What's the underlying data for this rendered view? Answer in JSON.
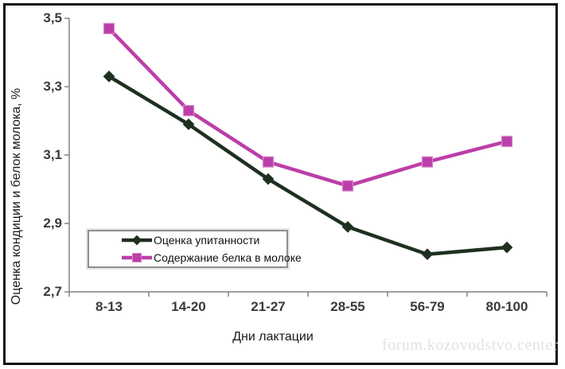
{
  "chart_data": {
    "type": "line",
    "title": "",
    "categories": [
      "8-13",
      "14-20",
      "21-27",
      "28-55",
      "56-79",
      "80-100"
    ],
    "series": [
      {
        "name": "Оценка упитанности",
        "values": [
          3.33,
          3.19,
          3.03,
          2.89,
          2.81,
          2.83
        ],
        "color": "#1e3020",
        "marker": "diamond"
      },
      {
        "name": "Содержание белка в молоке",
        "values": [
          3.47,
          3.23,
          3.08,
          3.01,
          3.08,
          3.14
        ],
        "color": "#bc3ea8",
        "marker": "square",
        "marker_edge": "#d887cb"
      }
    ],
    "xlabel": "Дни лактации",
    "ylabel": "Оценка кондиции и белок молока, %",
    "ylim": [
      2.7,
      3.5
    ],
    "yticks": [
      "2,7",
      "2,9",
      "3,1",
      "3,3",
      "3,5"
    ],
    "grid": false,
    "legend_position": "inside-bottom-left",
    "axis_color": "#828282"
  },
  "watermark": "forum.kozovodstvo.center"
}
